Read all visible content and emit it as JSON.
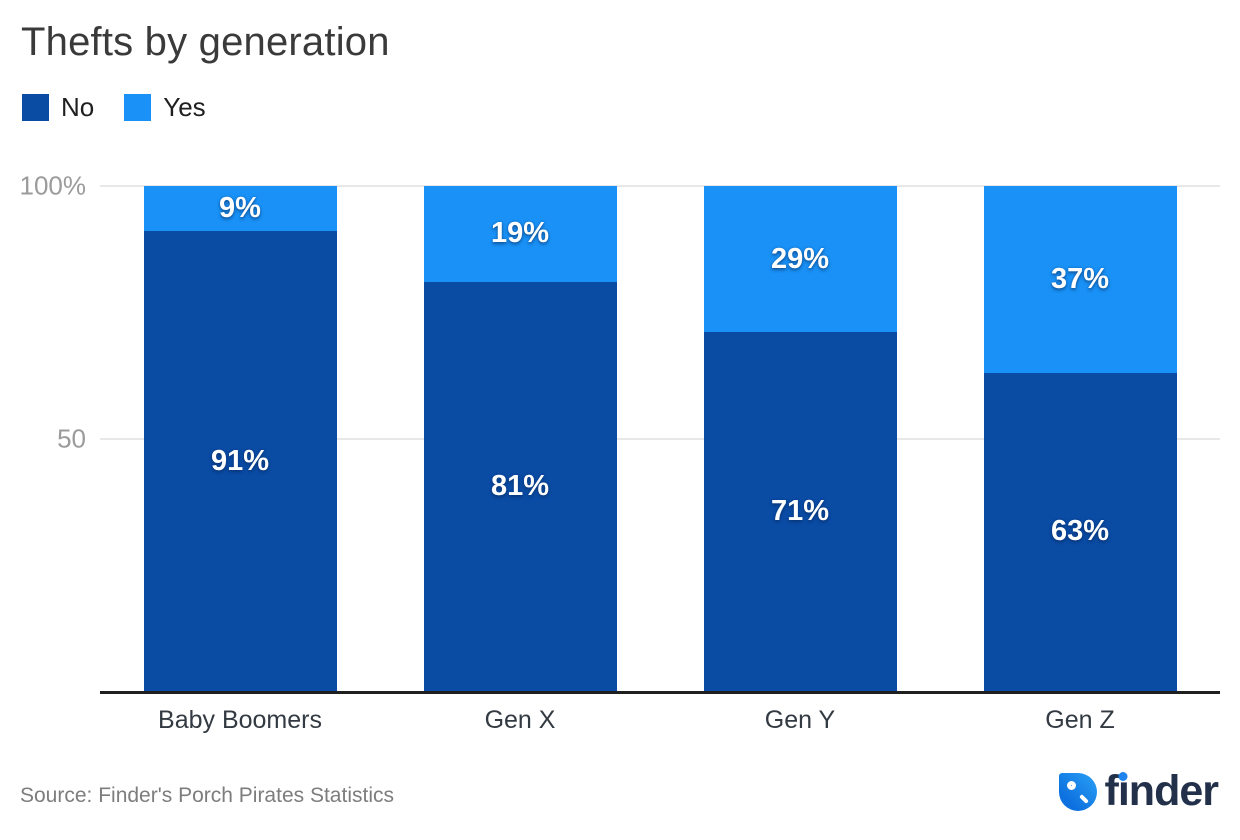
{
  "header": {
    "title": "Thefts by generation"
  },
  "chart_data": {
    "type": "bar",
    "stacked": true,
    "title": "Thefts by generation",
    "categories": [
      "Baby Boomers",
      "Gen X",
      "Gen Y",
      "Gen Z"
    ],
    "series": [
      {
        "name": "No",
        "color": "#0a4ba4",
        "values": [
          91,
          81,
          71,
          63
        ],
        "labels": [
          "91%",
          "81%",
          "71%",
          "63%"
        ]
      },
      {
        "name": "Yes",
        "color": "#1991f6",
        "values": [
          9,
          19,
          29,
          37
        ],
        "labels": [
          "9%",
          "19%",
          "29%",
          "37%"
        ]
      }
    ],
    "xlabel": "",
    "ylabel": "",
    "ylim": [
      0,
      100
    ],
    "yticks": [
      {
        "value": 100,
        "label": "100%"
      },
      {
        "value": 50,
        "label": "50"
      }
    ],
    "grid": "horizontal",
    "legend_position": "top-left"
  },
  "colors": {
    "no_series": "#0a4ba4",
    "yes_series": "#1991f6",
    "gridline": "#e8e8e8",
    "axis_line": "#1f1f1f",
    "tick_label": "#9b9b9b",
    "brand_navy": "#22304a",
    "brand_blue": "#1e83ec"
  },
  "footer": {
    "source": "Source: Finder's Porch Pirates Statistics",
    "brand": "finder"
  }
}
